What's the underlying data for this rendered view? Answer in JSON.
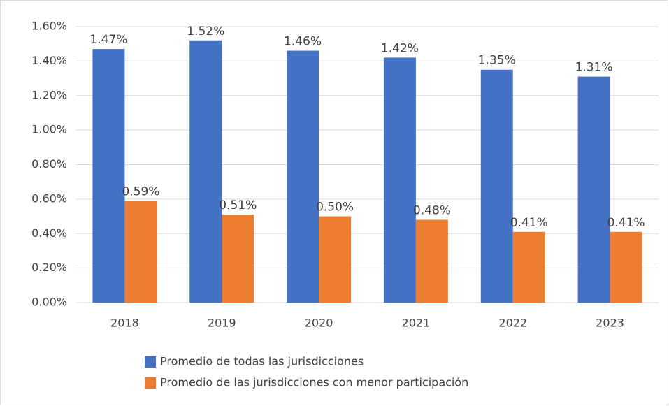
{
  "chart_data": {
    "type": "bar",
    "categories": [
      "2018",
      "2019",
      "2020",
      "2021",
      "2022",
      "2023"
    ],
    "series": [
      {
        "name": "Promedio de todas las jurisdicciones",
        "color": "#4472c4",
        "values": [
          1.47,
          1.52,
          1.46,
          1.42,
          1.35,
          1.31
        ],
        "value_labels": [
          "1.47%",
          "1.52%",
          "1.46%",
          "1.42%",
          "1.35%",
          "1.31%"
        ]
      },
      {
        "name": "Promedio de las jurisdicciones con menor participación",
        "color": "#ed7d31",
        "values": [
          0.59,
          0.51,
          0.5,
          0.48,
          0.41,
          0.41
        ],
        "value_labels": [
          "0.59%",
          "0.51%",
          "0.50%",
          "0.48%",
          "0.41%",
          "0.41%"
        ]
      }
    ],
    "ylim": [
      0,
      1.6
    ],
    "yticks": [
      {
        "value": 0,
        "label": "0.00%"
      },
      {
        "value": 0.2,
        "label": "0.20%"
      },
      {
        "value": 0.4,
        "label": "0.40%"
      },
      {
        "value": 0.6,
        "label": "0.60%"
      },
      {
        "value": 0.8,
        "label": "0.80%"
      },
      {
        "value": 1.0,
        "label": "1.00%"
      },
      {
        "value": 1.2,
        "label": "1.20%"
      },
      {
        "value": 1.4,
        "label": "1.40%"
      },
      {
        "value": 1.6,
        "label": "1.60%"
      }
    ],
    "grid": true
  }
}
